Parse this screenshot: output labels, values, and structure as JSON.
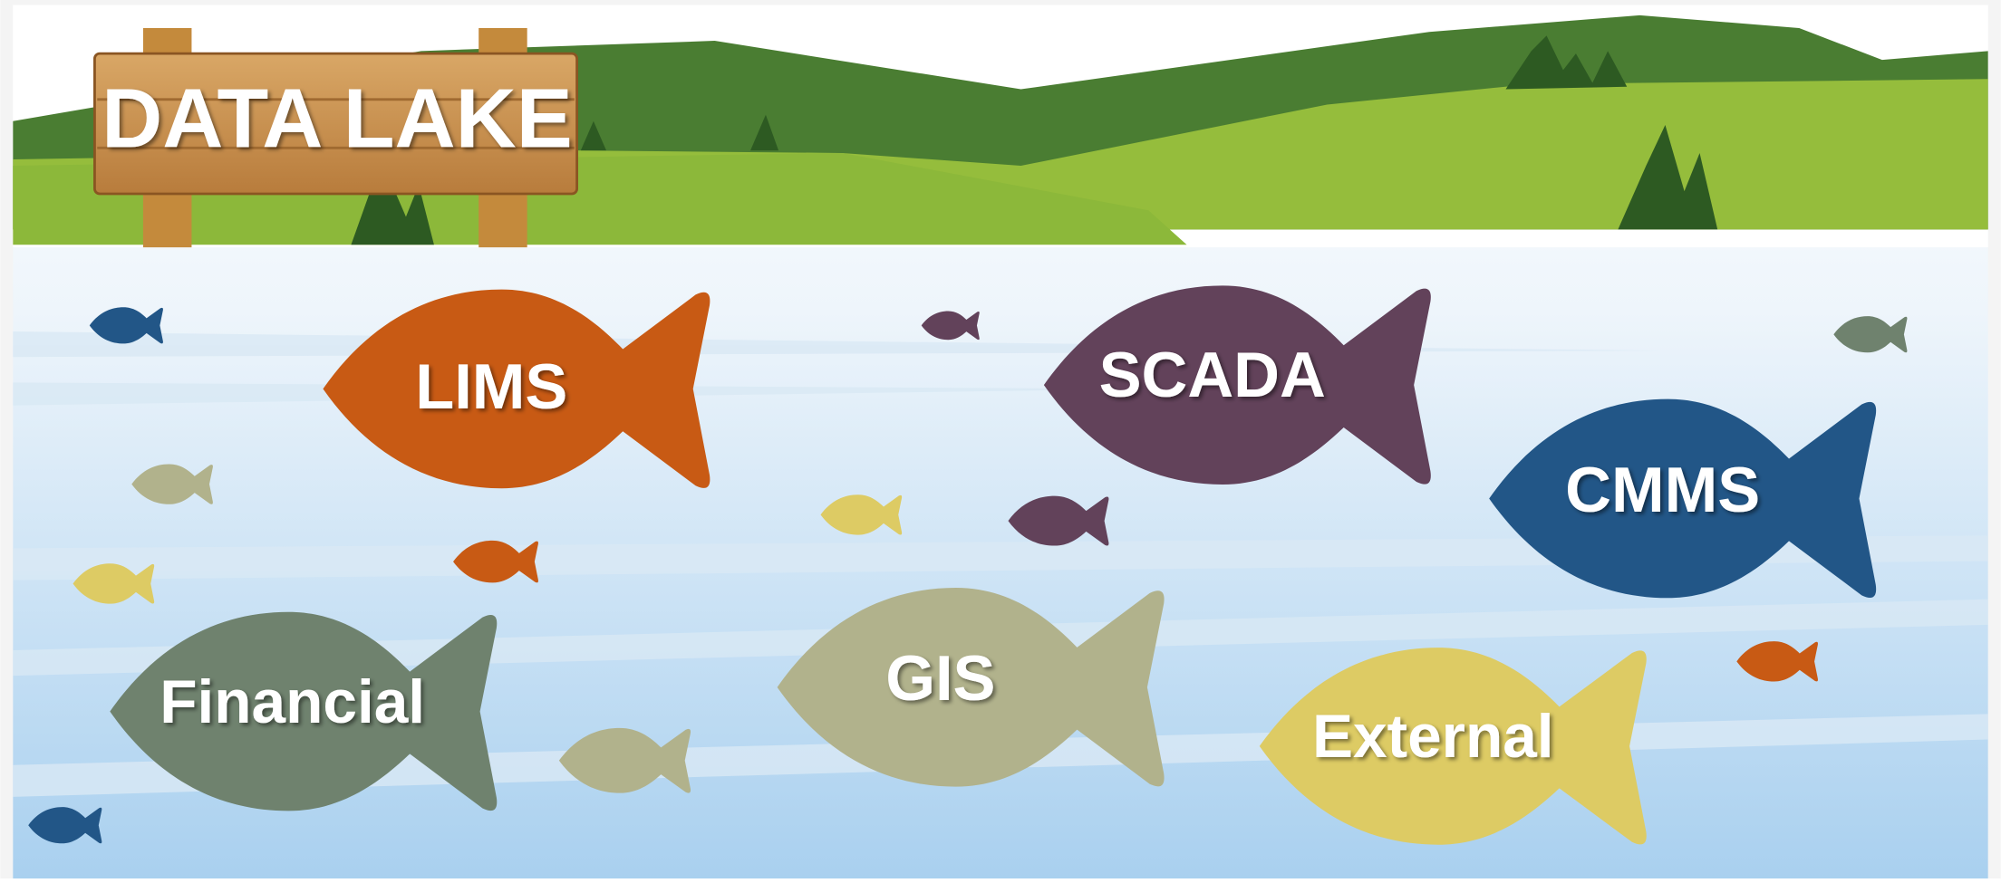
{
  "title": "DATA LAKE",
  "fish": [
    {
      "label": "LIMS"
    },
    {
      "label": "SCADA"
    },
    {
      "label": "CMMS"
    },
    {
      "label": "Financial"
    },
    {
      "label": "GIS"
    },
    {
      "label": "External"
    }
  ]
}
